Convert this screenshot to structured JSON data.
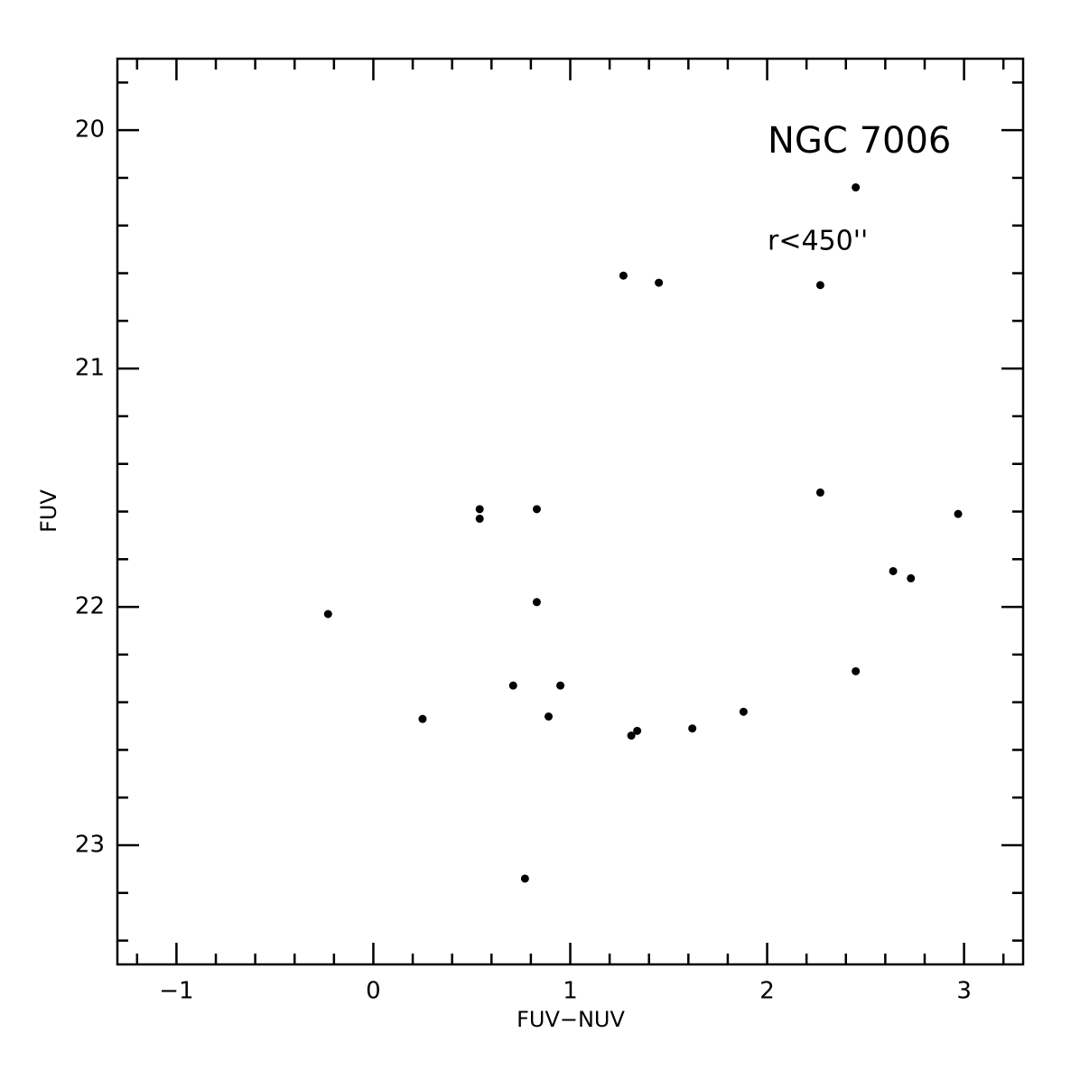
{
  "chart_data": {
    "type": "scatter",
    "x_label": "FUV−NUV",
    "y_label": "FUV",
    "annotations": [
      "NGC 7006",
      "r<450''"
    ],
    "color": "#000000",
    "x": [
      2.45,
      1.27,
      1.45,
      2.27,
      2.27,
      2.97,
      0.54,
      0.54,
      0.83,
      2.64,
      2.73,
      0.83,
      -0.23,
      2.45,
      0.71,
      0.95,
      0.25,
      0.89,
      1.88,
      1.62,
      1.34,
      1.31,
      0.77
    ],
    "values": [
      20.24,
      20.61,
      20.64,
      20.65,
      21.52,
      21.61,
      21.59,
      21.63,
      21.59,
      21.85,
      21.88,
      21.98,
      22.03,
      22.27,
      22.33,
      22.33,
      22.47,
      22.46,
      22.44,
      22.51,
      22.52,
      22.54,
      23.14
    ],
    "xlim": [
      -1.3,
      3.3
    ],
    "ylim": [
      19.7,
      23.5
    ],
    "y_inverted": true,
    "xticks": [
      {
        "value": -1,
        "label": "−1"
      },
      0,
      1,
      2,
      3
    ],
    "yticks": [
      20,
      21,
      22,
      23
    ],
    "xminorticks": [
      -1.2,
      -0.8,
      -0.6,
      -0.4,
      -0.2,
      0.2,
      0.4,
      0.6,
      0.8,
      1.2,
      1.4,
      1.6,
      1.8,
      2.2,
      2.4,
      2.6,
      2.8,
      3.2
    ],
    "yminorticks": [
      19.8,
      20.2,
      20.4,
      20.6,
      20.8,
      21.2,
      21.4,
      21.6,
      21.8,
      22.2,
      22.4,
      22.6,
      22.8,
      23.2,
      23.4
    ]
  }
}
